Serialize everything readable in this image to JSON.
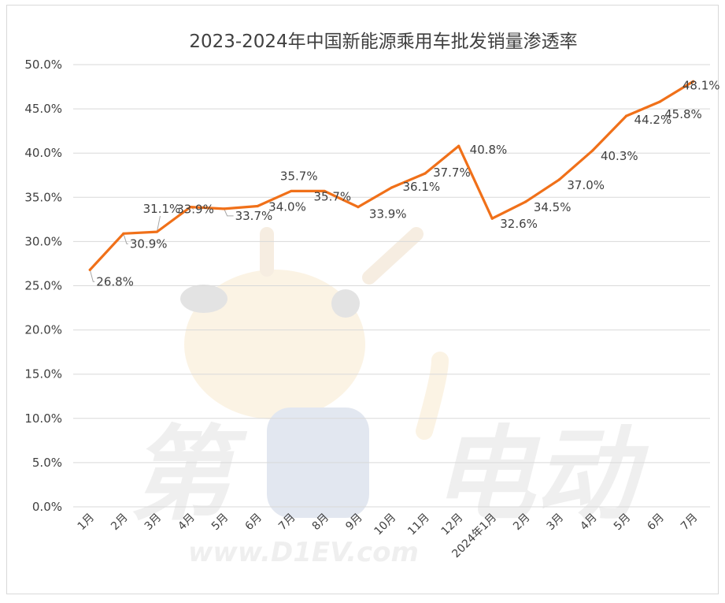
{
  "chart_data": {
    "type": "line",
    "title": "2023-2024年中国新能源乘用车批发销量渗透率",
    "xlabel": "",
    "ylabel": "",
    "categories": [
      "1月",
      "2月",
      "3月",
      "4月",
      "5月",
      "6月",
      "7月",
      "8月",
      "9月",
      "10月",
      "11月",
      "12月",
      "2024年1月",
      "2月",
      "3月",
      "4月",
      "5月",
      "6月",
      "7月"
    ],
    "values": [
      26.8,
      30.9,
      31.1,
      33.9,
      33.7,
      34.0,
      35.7,
      35.7,
      33.9,
      36.1,
      37.7,
      40.8,
      32.6,
      34.5,
      37.0,
      40.3,
      44.2,
      45.8,
      48.1
    ],
    "data_labels": [
      "26.8%",
      "30.9%",
      "31.1%",
      "33.9%",
      "33.7%",
      "34.0%",
      "35.7%",
      "35.7%",
      "33.9%",
      "36.1%",
      "37.7%",
      "40.8%",
      "32.6%",
      "34.5%",
      "37.0%",
      "40.3%",
      "44.2%",
      "45.8%",
      "48.1%"
    ],
    "y_ticks": [
      "0.0%",
      "5.0%",
      "10.0%",
      "15.0%",
      "20.0%",
      "25.0%",
      "30.0%",
      "35.0%",
      "40.0%",
      "45.0%",
      "50.0%"
    ],
    "ylim": [
      0,
      50
    ],
    "grid": true,
    "legend": "none",
    "line_color": "#f07019",
    "watermark_text": "第1电动 www.D1EV.com"
  }
}
